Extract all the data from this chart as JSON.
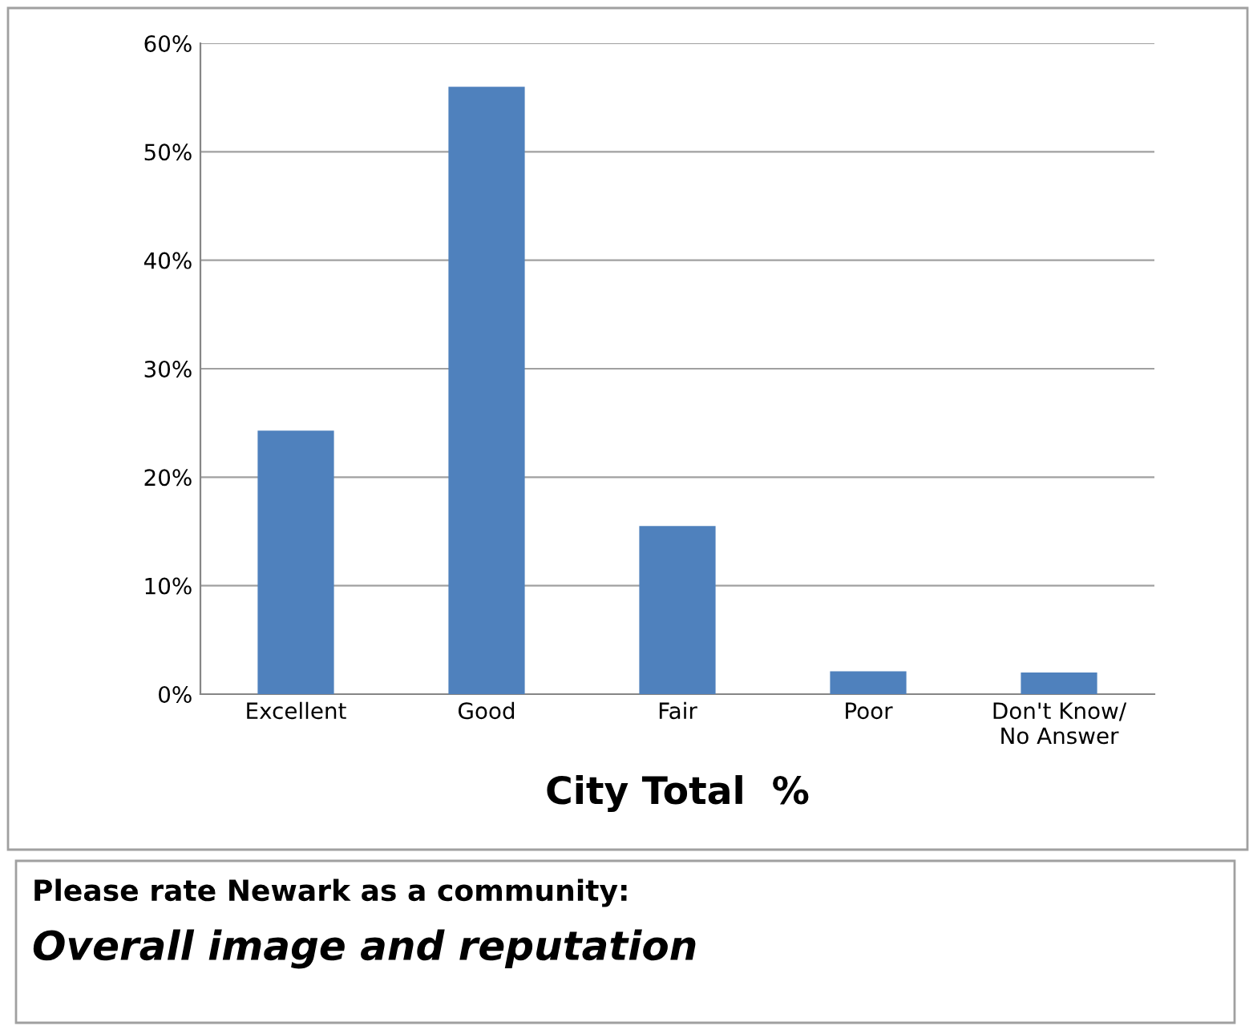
{
  "chart_data": {
    "type": "bar",
    "xlabel": "City Total  %",
    "categories": [
      "Excellent",
      "Good",
      "Fair",
      "Poor",
      "Don't Know/ No Answer"
    ],
    "values": [
      24.3,
      56,
      15.5,
      2.1,
      2
    ],
    "color": "#4f81bd",
    "ylim": [
      0,
      60
    ],
    "yticks": [
      {
        "value": 0,
        "label": "0%"
      },
      {
        "value": 10,
        "label": "10%"
      },
      {
        "value": 20,
        "label": "20%"
      },
      {
        "value": 30,
        "label": "30%"
      },
      {
        "value": 40,
        "label": "40%"
      },
      {
        "value": 50,
        "label": "50%"
      },
      {
        "value": 60,
        "label": "60%"
      }
    ],
    "grid": "y",
    "legend": false,
    "annotations": [
      "Please rate Newark as a community:",
      "Overall image and reputation"
    ]
  }
}
